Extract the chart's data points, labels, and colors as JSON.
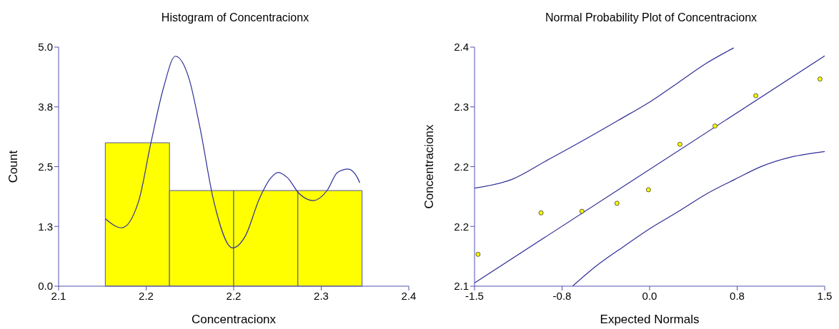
{
  "chart_data": [
    {
      "type": "histogram",
      "title": "Histogram of Concentracionx",
      "xlabel": "Concentracionx",
      "ylabel": "Count",
      "bins": [
        2.14,
        2.195,
        2.25,
        2.305,
        2.36
      ],
      "values": [
        3,
        2,
        2,
        2
      ],
      "color": "#ffff00",
      "xlim": [
        2.1,
        2.4
      ],
      "xticks": [
        {
          "value": 2.1,
          "label": "2.1"
        },
        {
          "value": 2.175,
          "label": "2.2"
        },
        {
          "value": 2.25,
          "label": "2.2"
        },
        {
          "value": 2.325,
          "label": "2.3"
        },
        {
          "value": 2.4,
          "label": "2.4"
        }
      ],
      "ylim": [
        0,
        5
      ],
      "yticks": [
        {
          "value": 0,
          "label": "0.0"
        },
        {
          "value": 1.25,
          "label": "1.3"
        },
        {
          "value": 2.5,
          "label": "2.5"
        },
        {
          "value": 3.75,
          "label": "3.8"
        },
        {
          "value": 5,
          "label": "5.0"
        }
      ],
      "series": [
        {
          "type": "line",
          "color": "#2e2e96",
          "x": [
            2.14,
            2.154,
            2.1685,
            2.179,
            2.19,
            2.2,
            2.212,
            2.221,
            2.233,
            2.249,
            2.26,
            2.272,
            2.282,
            2.288,
            2.296,
            2.306,
            2.318,
            2.33,
            2.339,
            2.348,
            2.356,
            2.358
          ],
          "values": [
            1.41,
            1.22,
            1.77,
            2.99,
            4.16,
            4.81,
            4.32,
            3.33,
            1.77,
            0.8,
            1.05,
            1.83,
            2.27,
            2.38,
            2.27,
            1.94,
            1.79,
            2.0,
            2.38,
            2.45,
            2.27,
            2.16
          ]
        }
      ]
    },
    {
      "type": "scatter",
      "title": "Normal Probability Plot of Concentracionx",
      "xlabel": "Expected Normals",
      "ylabel": "Concentracionx",
      "xlim": [
        -1.5,
        1.5
      ],
      "xticks": [
        -1.5,
        {
          "value": -0.75,
          "label": "-0.8"
        },
        {
          "value": 0,
          "label": "0.0"
        },
        {
          "value": 0.75,
          "label": "0.8"
        },
        1.5
      ],
      "ylim": [
        2.1,
        2.4
      ],
      "yticks": [
        2.1,
        {
          "value": 2.175,
          "label": "2.2"
        },
        {
          "value": 2.25,
          "label": "2.2"
        },
        {
          "value": 2.325,
          "label": "2.3"
        },
        2.4
      ],
      "series": [
        {
          "type": "scatter",
          "marker": "circle",
          "color": "#ffff00",
          "x": [
            -1.47,
            -0.93,
            -0.58,
            -0.28,
            -0.01,
            0.26,
            0.56,
            0.91,
            1.46
          ],
          "values": [
            2.14,
            2.192,
            2.194,
            2.204,
            2.221,
            2.278,
            2.301,
            2.339,
            2.36
          ]
        },
        {
          "type": "line",
          "color": "#2e2e96",
          "x": [
            -1.5,
            1.5
          ],
          "values": [
            2.104,
            2.389
          ]
        },
        {
          "type": "line",
          "color": "#2e2e96",
          "x": [
            -1.5,
            -1.18,
            -0.89,
            -0.58,
            -0.27,
            0.01,
            0.25,
            0.49,
            0.72
          ],
          "values": [
            2.223,
            2.234,
            2.257,
            2.282,
            2.308,
            2.332,
            2.356,
            2.38,
            2.399
          ]
        },
        {
          "type": "line",
          "color": "#2e2e96",
          "x": [
            -0.66,
            -0.46,
            -0.22,
            0.01,
            0.25,
            0.49,
            0.73,
            0.97,
            1.21,
            1.5
          ],
          "values": [
            2.1,
            2.125,
            2.15,
            2.173,
            2.194,
            2.216,
            2.234,
            2.251,
            2.262,
            2.269
          ]
        }
      ]
    }
  ]
}
